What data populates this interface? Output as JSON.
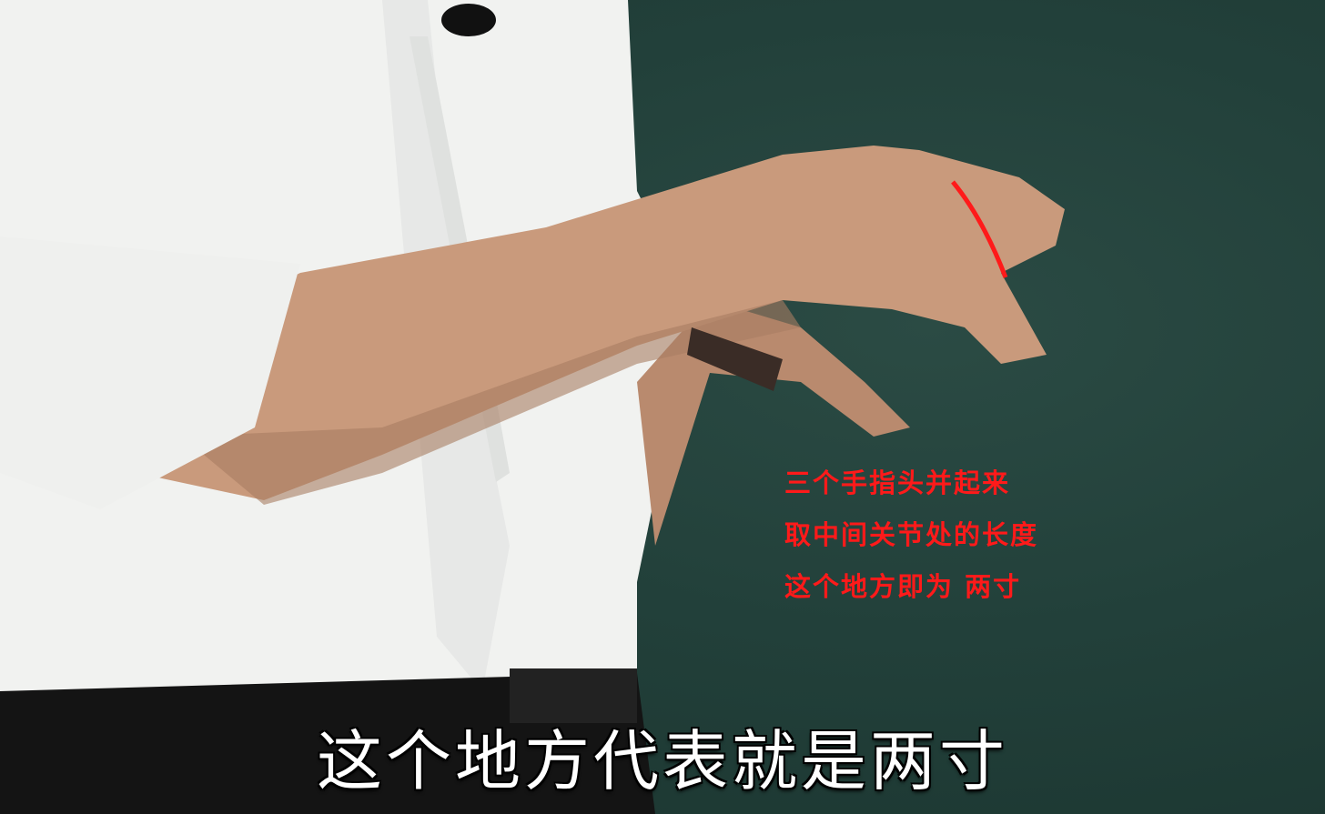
{
  "annotation": {
    "lines": [
      "三个手指头并起来",
      "取中间关节处的长度",
      "这个地方即为 两寸"
    ],
    "color": "#ff1a1a"
  },
  "subtitle": {
    "text": "这个地方代表就是两寸"
  },
  "colors": {
    "chalkboard": "#22403a",
    "shirt": "#f3f4f2",
    "skin": "#c99a7c",
    "marker": "#ff1a1a"
  }
}
